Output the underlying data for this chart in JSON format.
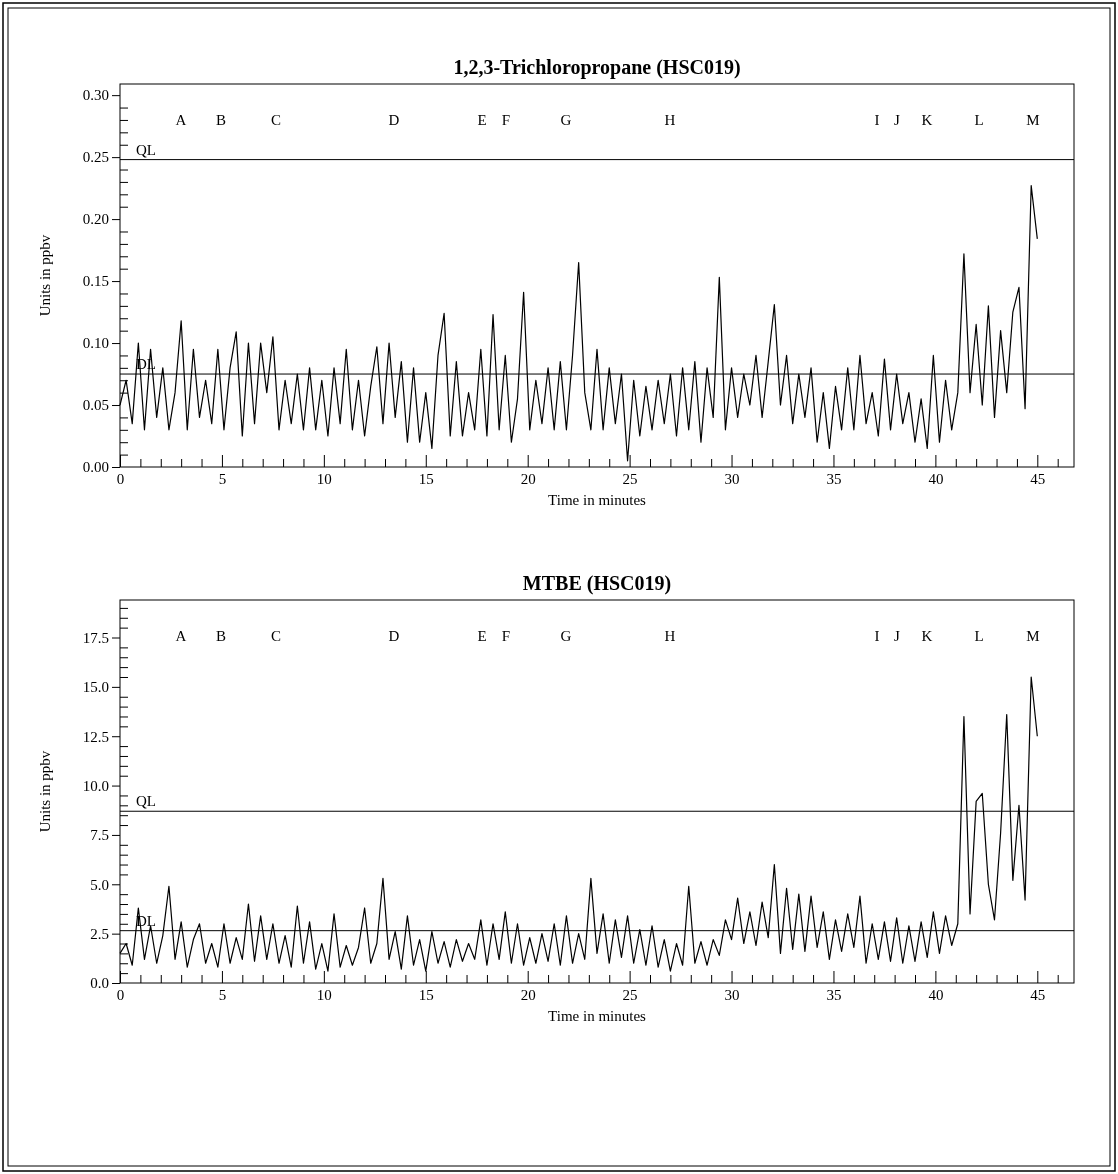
{
  "chart_data": [
    {
      "type": "line",
      "title": "1,2,3-Trichloropropane (HSC019)",
      "xlabel": "Time in minutes",
      "ylabel": "Units in ppbv",
      "x": [
        0,
        0.3,
        0.6,
        0.9,
        1.2,
        1.5,
        1.8,
        2.1,
        2.4,
        2.7,
        3,
        3.3,
        3.6,
        3.9,
        4.2,
        4.5,
        4.8,
        5.1,
        5.4,
        5.7,
        6,
        6.3,
        6.6,
        6.9,
        7.2,
        7.5,
        7.8,
        8.1,
        8.4,
        8.7,
        9,
        9.3,
        9.6,
        9.9,
        10.2,
        10.5,
        10.8,
        11.1,
        11.4,
        11.7,
        12,
        12.3,
        12.6,
        12.9,
        13.2,
        13.5,
        13.8,
        14.1,
        14.4,
        14.7,
        15,
        15.3,
        15.6,
        15.9,
        16.2,
        16.5,
        16.8,
        17.1,
        17.4,
        17.7,
        18,
        18.3,
        18.6,
        18.9,
        19.2,
        19.5,
        19.8,
        20.1,
        20.4,
        20.7,
        21,
        21.3,
        21.6,
        21.9,
        22.2,
        22.5,
        22.8,
        23.1,
        23.4,
        23.7,
        24,
        24.3,
        24.6,
        24.9,
        25.2,
        25.5,
        25.8,
        26.1,
        26.4,
        26.7,
        27,
        27.3,
        27.6,
        27.9,
        28.2,
        28.5,
        28.8,
        29.1,
        29.4,
        29.7,
        30,
        30.3,
        30.6,
        30.9,
        31.2,
        31.5,
        31.8,
        32.1,
        32.4,
        32.7,
        33,
        33.3,
        33.6,
        33.9,
        34.2,
        34.5,
        34.8,
        35.1,
        35.4,
        35.7,
        36,
        36.3,
        36.6,
        36.9,
        37.2,
        37.5,
        37.8,
        38.1,
        38.4,
        38.7,
        39,
        39.3,
        39.6,
        39.9,
        40.2,
        40.5,
        40.8,
        41.1,
        41.4,
        41.7,
        42,
        42.3,
        42.6,
        42.9,
        43.2,
        43.5,
        43.8,
        44.1,
        44.4,
        44.7,
        45
      ],
      "series": [
        {
          "color": "#000000",
          "values": [
            0.05,
            0.07,
            0.035,
            0.1,
            0.03,
            0.095,
            0.04,
            0.08,
            0.03,
            0.06,
            0.118,
            0.03,
            0.095,
            0.04,
            0.07,
            0.035,
            0.095,
            0.03,
            0.08,
            0.109,
            0.025,
            0.1,
            0.035,
            0.1,
            0.06,
            0.105,
            0.03,
            0.07,
            0.035,
            0.075,
            0.03,
            0.08,
            0.03,
            0.07,
            0.025,
            0.08,
            0.035,
            0.095,
            0.03,
            0.07,
            0.025,
            0.065,
            0.097,
            0.035,
            0.1,
            0.04,
            0.085,
            0.02,
            0.08,
            0.02,
            0.06,
            0.015,
            0.09,
            0.124,
            0.025,
            0.085,
            0.025,
            0.06,
            0.03,
            0.095,
            0.025,
            0.123,
            0.03,
            0.09,
            0.02,
            0.055,
            0.141,
            0.03,
            0.07,
            0.035,
            0.08,
            0.03,
            0.085,
            0.03,
            0.09,
            0.165,
            0.06,
            0.03,
            0.095,
            0.03,
            0.08,
            0.035,
            0.075,
            0.005,
            0.07,
            0.025,
            0.065,
            0.03,
            0.07,
            0.035,
            0.075,
            0.025,
            0.08,
            0.03,
            0.085,
            0.02,
            0.08,
            0.04,
            0.153,
            0.03,
            0.08,
            0.04,
            0.075,
            0.05,
            0.09,
            0.04,
            0.085,
            0.131,
            0.05,
            0.09,
            0.035,
            0.075,
            0.04,
            0.08,
            0.02,
            0.06,
            0.015,
            0.065,
            0.03,
            0.08,
            0.03,
            0.09,
            0.035,
            0.06,
            0.025,
            0.087,
            0.03,
            0.075,
            0.035,
            0.06,
            0.02,
            0.055,
            0.015,
            0.09,
            0.02,
            0.07,
            0.03,
            0.06,
            0.172,
            0.06,
            0.115,
            0.05,
            0.13,
            0.04,
            0.11,
            0.06,
            0.125,
            0.145,
            0.047,
            0.227,
            0.184
          ]
        }
      ],
      "xlim": [
        0,
        46.8
      ],
      "ylim": [
        0,
        0.309
      ],
      "xticks": [
        0,
        {
          "value": 1,
          "label": null
        },
        {
          "value": 2,
          "label": null
        },
        {
          "value": 3,
          "label": null
        },
        {
          "value": 4,
          "label": null
        },
        5,
        {
          "value": 6,
          "label": null
        },
        {
          "value": 7,
          "label": null
        },
        {
          "value": 8,
          "label": null
        },
        {
          "value": 9,
          "label": null
        },
        10,
        {
          "value": 11,
          "label": null
        },
        {
          "value": 12,
          "label": null
        },
        {
          "value": 13,
          "label": null
        },
        {
          "value": 14,
          "label": null
        },
        15,
        {
          "value": 16,
          "label": null
        },
        {
          "value": 17,
          "label": null
        },
        {
          "value": 18,
          "label": null
        },
        {
          "value": 19,
          "label": null
        },
        20,
        {
          "value": 21,
          "label": null
        },
        {
          "value": 22,
          "label": null
        },
        {
          "value": 23,
          "label": null
        },
        {
          "value": 24,
          "label": null
        },
        25,
        {
          "value": 26,
          "label": null
        },
        {
          "value": 27,
          "label": null
        },
        {
          "value": 28,
          "label": null
        },
        {
          "value": 29,
          "label": null
        },
        30,
        {
          "value": 31,
          "label": null
        },
        {
          "value": 32,
          "label": null
        },
        {
          "value": 33,
          "label": null
        },
        {
          "value": 34,
          "label": null
        },
        35,
        {
          "value": 36,
          "label": null
        },
        {
          "value": 37,
          "label": null
        },
        {
          "value": 38,
          "label": null
        },
        {
          "value": 39,
          "label": null
        },
        40,
        {
          "value": 41,
          "label": null
        },
        {
          "value": 42,
          "label": null
        },
        {
          "value": 43,
          "label": null
        },
        {
          "value": 44,
          "label": null
        },
        45,
        {
          "value": 46,
          "label": null
        }
      ],
      "yticks": [
        {
          "value": 0,
          "label": "0.00"
        },
        {
          "value": 0.01,
          "label": null
        },
        {
          "value": 0.02,
          "label": null
        },
        {
          "value": 0.03,
          "label": null
        },
        {
          "value": 0.04,
          "label": null
        },
        0.05,
        {
          "value": 0.06,
          "label": null
        },
        {
          "value": 0.07,
          "label": null
        },
        {
          "value": 0.08,
          "label": null
        },
        {
          "value": 0.09,
          "label": null
        },
        {
          "value": 0.1,
          "label": "0.10"
        },
        {
          "value": 0.11,
          "label": null
        },
        {
          "value": 0.12,
          "label": null
        },
        {
          "value": 0.13,
          "label": null
        },
        {
          "value": 0.14,
          "label": null
        },
        0.15,
        {
          "value": 0.16,
          "label": null
        },
        {
          "value": 0.17,
          "label": null
        },
        {
          "value": 0.18,
          "label": null
        },
        {
          "value": 0.19,
          "label": null
        },
        {
          "value": 0.2,
          "label": "0.20"
        },
        {
          "value": 0.21,
          "label": null
        },
        {
          "value": 0.22,
          "label": null
        },
        {
          "value": 0.23,
          "label": null
        },
        {
          "value": 0.24,
          "label": null
        },
        0.25,
        {
          "value": 0.26,
          "label": null
        },
        {
          "value": 0.27,
          "label": null
        },
        {
          "value": 0.28,
          "label": null
        },
        {
          "value": 0.29,
          "label": null
        },
        {
          "value": 0.3,
          "label": "0.30"
        }
      ],
      "ref_lines": [
        {
          "axis": "y",
          "value": 0.248,
          "label": "QL"
        },
        {
          "axis": "y",
          "value": 0.075,
          "label": "DL"
        }
      ],
      "annotations": [
        "A",
        "B",
        "C",
        "D",
        "E",
        "F",
        "G",
        "H",
        "I",
        "J",
        "K",
        "L",
        "M"
      ]
    },
    {
      "type": "line",
      "title": "MTBE (HSC019)",
      "xlabel": "Time in minutes",
      "ylabel": "Units in ppbv",
      "x": [
        0,
        0.3,
        0.6,
        0.9,
        1.2,
        1.5,
        1.8,
        2.1,
        2.4,
        2.7,
        3,
        3.3,
        3.6,
        3.9,
        4.2,
        4.5,
        4.8,
        5.1,
        5.4,
        5.7,
        6,
        6.3,
        6.6,
        6.9,
        7.2,
        7.5,
        7.8,
        8.1,
        8.4,
        8.7,
        9,
        9.3,
        9.6,
        9.9,
        10.2,
        10.5,
        10.8,
        11.1,
        11.4,
        11.7,
        12,
        12.3,
        12.6,
        12.9,
        13.2,
        13.5,
        13.8,
        14.1,
        14.4,
        14.7,
        15,
        15.3,
        15.6,
        15.9,
        16.2,
        16.5,
        16.8,
        17.1,
        17.4,
        17.7,
        18,
        18.3,
        18.6,
        18.9,
        19.2,
        19.5,
        19.8,
        20.1,
        20.4,
        20.7,
        21,
        21.3,
        21.6,
        21.9,
        22.2,
        22.5,
        22.8,
        23.1,
        23.4,
        23.7,
        24,
        24.3,
        24.6,
        24.9,
        25.2,
        25.5,
        25.8,
        26.1,
        26.4,
        26.7,
        27,
        27.3,
        27.6,
        27.9,
        28.2,
        28.5,
        28.8,
        29.1,
        29.4,
        29.7,
        30,
        30.3,
        30.6,
        30.9,
        31.2,
        31.5,
        31.8,
        32.1,
        32.4,
        32.7,
        33,
        33.3,
        33.6,
        33.9,
        34.2,
        34.5,
        34.8,
        35.1,
        35.4,
        35.7,
        36,
        36.3,
        36.6,
        36.9,
        37.2,
        37.5,
        37.8,
        38.1,
        38.4,
        38.7,
        39,
        39.3,
        39.6,
        39.9,
        40.2,
        40.5,
        40.8,
        41.1,
        41.4,
        41.7,
        42,
        42.3,
        42.6,
        42.9,
        43.2,
        43.5,
        43.8,
        44.1,
        44.4,
        44.7,
        45
      ],
      "series": [
        {
          "color": "#000000",
          "values": [
            1.5,
            2,
            0.9,
            3.8,
            1.2,
            2.9,
            1,
            2.4,
            4.9,
            1.2,
            3.1,
            0.8,
            2.2,
            3,
            1,
            2,
            0.8,
            3,
            1,
            2.3,
            1.2,
            4,
            1.1,
            3.4,
            1.2,
            3,
            1,
            2.4,
            0.8,
            3.9,
            1,
            3.1,
            0.7,
            2,
            0.6,
            3.5,
            0.8,
            1.9,
            0.9,
            1.8,
            3.8,
            1,
            2,
            5.3,
            1.2,
            2.6,
            0.7,
            3.4,
            0.9,
            2.2,
            0.6,
            2.6,
            1,
            2.1,
            0.8,
            2.2,
            1.1,
            2,
            1.2,
            3.2,
            0.9,
            3,
            1.2,
            3.6,
            1,
            3,
            0.9,
            2.3,
            1,
            2.5,
            1.1,
            3,
            0.9,
            3.4,
            1,
            2.5,
            1.2,
            5.3,
            1.5,
            3.5,
            1,
            3.2,
            1.3,
            3.4,
            1,
            2.7,
            0.9,
            2.9,
            0.8,
            2.2,
            0.6,
            2,
            0.9,
            4.9,
            1,
            2.1,
            0.9,
            2.2,
            1.4,
            3.2,
            2.2,
            4.3,
            2,
            3.6,
            1.9,
            4.1,
            2.3,
            6,
            1.5,
            4.8,
            1.7,
            4.5,
            1.6,
            4.4,
            1.8,
            3.6,
            1.2,
            3.2,
            1.6,
            3.5,
            1.8,
            4.4,
            1,
            3,
            1.2,
            3.1,
            1.1,
            3.3,
            1,
            2.9,
            1.1,
            3.1,
            1.3,
            3.6,
            1.5,
            3.4,
            1.9,
            3,
            13.5,
            3.5,
            9.2,
            9.6,
            5,
            3.2,
            7.6,
            13.6,
            5.2,
            9,
            4.2,
            15.5,
            12.5
          ]
        }
      ],
      "xlim": [
        0,
        46.8
      ],
      "ylim": [
        0,
        19.4
      ],
      "xticks": [
        0,
        {
          "value": 1,
          "label": null
        },
        {
          "value": 2,
          "label": null
        },
        {
          "value": 3,
          "label": null
        },
        {
          "value": 4,
          "label": null
        },
        5,
        {
          "value": 6,
          "label": null
        },
        {
          "value": 7,
          "label": null
        },
        {
          "value": 8,
          "label": null
        },
        {
          "value": 9,
          "label": null
        },
        10,
        {
          "value": 11,
          "label": null
        },
        {
          "value": 12,
          "label": null
        },
        {
          "value": 13,
          "label": null
        },
        {
          "value": 14,
          "label": null
        },
        15,
        {
          "value": 16,
          "label": null
        },
        {
          "value": 17,
          "label": null
        },
        {
          "value": 18,
          "label": null
        },
        {
          "value": 19,
          "label": null
        },
        20,
        {
          "value": 21,
          "label": null
        },
        {
          "value": 22,
          "label": null
        },
        {
          "value": 23,
          "label": null
        },
        {
          "value": 24,
          "label": null
        },
        25,
        {
          "value": 26,
          "label": null
        },
        {
          "value": 27,
          "label": null
        },
        {
          "value": 28,
          "label": null
        },
        {
          "value": 29,
          "label": null
        },
        30,
        {
          "value": 31,
          "label": null
        },
        {
          "value": 32,
          "label": null
        },
        {
          "value": 33,
          "label": null
        },
        {
          "value": 34,
          "label": null
        },
        35,
        {
          "value": 36,
          "label": null
        },
        {
          "value": 37,
          "label": null
        },
        {
          "value": 38,
          "label": null
        },
        {
          "value": 39,
          "label": null
        },
        40,
        {
          "value": 41,
          "label": null
        },
        {
          "value": 42,
          "label": null
        },
        {
          "value": 43,
          "label": null
        },
        {
          "value": 44,
          "label": null
        },
        45,
        {
          "value": 46,
          "label": null
        }
      ],
      "yticks": [
        {
          "value": 0,
          "label": "0.0"
        },
        {
          "value": 0.5,
          "label": null
        },
        {
          "value": 1,
          "label": null
        },
        {
          "value": 1.5,
          "label": null
        },
        {
          "value": 2,
          "label": null
        },
        2.5,
        {
          "value": 3,
          "label": null
        },
        {
          "value": 3.5,
          "label": null
        },
        {
          "value": 4,
          "label": null
        },
        {
          "value": 4.5,
          "label": null
        },
        {
          "value": 5,
          "label": "5.0"
        },
        {
          "value": 5.5,
          "label": null
        },
        {
          "value": 6,
          "label": null
        },
        {
          "value": 6.5,
          "label": null
        },
        {
          "value": 7,
          "label": null
        },
        7.5,
        {
          "value": 8,
          "label": null
        },
        {
          "value": 8.5,
          "label": null
        },
        {
          "value": 9,
          "label": null
        },
        {
          "value": 9.5,
          "label": null
        },
        {
          "value": 10,
          "label": "10.0"
        },
        {
          "value": 10.5,
          "label": null
        },
        {
          "value": 11,
          "label": null
        },
        {
          "value": 11.5,
          "label": null
        },
        {
          "value": 12,
          "label": null
        },
        12.5,
        {
          "value": 13,
          "label": null
        },
        {
          "value": 13.5,
          "label": null
        },
        {
          "value": 14,
          "label": null
        },
        {
          "value": 14.5,
          "label": null
        },
        {
          "value": 15,
          "label": "15.0"
        },
        {
          "value": 15.5,
          "label": null
        },
        {
          "value": 16,
          "label": null
        },
        {
          "value": 16.5,
          "label": null
        },
        {
          "value": 17,
          "label": null
        },
        17.5,
        {
          "value": 18,
          "label": null
        },
        {
          "value": 18.5,
          "label": null
        },
        {
          "value": 19,
          "label": null
        }
      ],
      "ref_lines": [
        {
          "axis": "y",
          "value": 8.7,
          "label": "QL"
        },
        {
          "axis": "y",
          "value": 2.65,
          "label": "DL"
        }
      ],
      "annotations": [
        "A",
        "B",
        "C",
        "D",
        "E",
        "F",
        "G",
        "H",
        "I",
        "J",
        "K",
        "L",
        "M"
      ]
    }
  ]
}
